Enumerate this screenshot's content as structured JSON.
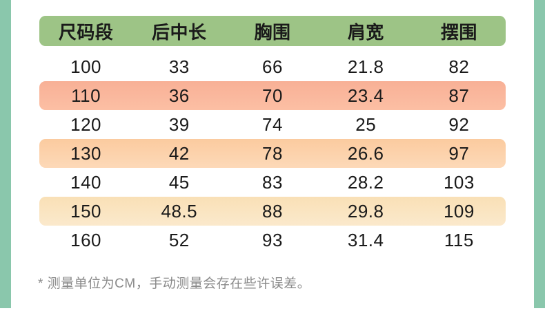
{
  "chart_data": {
    "type": "table",
    "columns": [
      "尺码段",
      "后中长",
      "胸围",
      "肩宽",
      "摆围"
    ],
    "rows": [
      [
        "100",
        "33",
        "66",
        "21.8",
        "82"
      ],
      [
        "110",
        "36",
        "70",
        "23.4",
        "87"
      ],
      [
        "120",
        "39",
        "74",
        "25",
        "92"
      ],
      [
        "130",
        "42",
        "78",
        "26.6",
        "97"
      ],
      [
        "140",
        "45",
        "83",
        "28.2",
        "103"
      ],
      [
        "150",
        "48.5",
        "88",
        "29.8",
        "109"
      ],
      [
        "160",
        "52",
        "93",
        "31.4",
        "115"
      ]
    ],
    "row_highlights": [
      "plain",
      "salmon",
      "plain",
      "peach",
      "plain",
      "cream",
      "plain"
    ],
    "unit": "CM"
  },
  "note": "* 测量单位为CM，手动测量会存在些许误差。",
  "colors": {
    "strip_green": "#8AC7AC",
    "header_green": "#9DC486",
    "salmon_top": "#F8B096",
    "salmon_bottom": "#FCBFA4",
    "peach_top": "#FBCB9F",
    "peach_bottom": "#FDD9B8",
    "cream_top": "#F9E0B6",
    "cream_bottom": "#FBE9CC",
    "text_black": "#1A1A1A",
    "note_gray": "#8A8A8A"
  }
}
